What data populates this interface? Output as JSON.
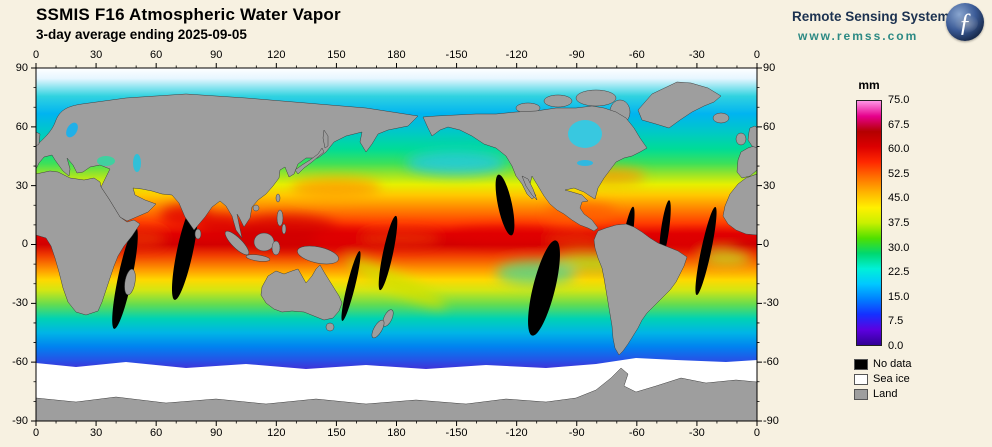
{
  "colors": {
    "page-bg": "#f7f1e1",
    "brand-name": "#1c3250",
    "brand-url": "#2d8a84",
    "land": "#9e9e9e"
  },
  "header": {
    "title": "SSMIS F16 Atmospheric Water Vapor",
    "subtitle": "3-day average ending 2025-09-05"
  },
  "branding": {
    "name": "Remote Sensing Systems",
    "url": "www.remss.com",
    "logo_glyph": "ƒ"
  },
  "axes": {
    "lon": [
      "0",
      "30",
      "60",
      "90",
      "120",
      "150",
      "180",
      "-150",
      "-120",
      "-90",
      "-60",
      "-30",
      "0"
    ],
    "lat": [
      "90",
      "60",
      "30",
      "0",
      "-30",
      "-60",
      "-90"
    ]
  },
  "colorbar": {
    "unit": "mm",
    "ticks": [
      "75.0",
      "67.5",
      "60.0",
      "52.5",
      "45.0",
      "37.5",
      "30.0",
      "22.5",
      "15.0",
      "7.5",
      "0.0"
    ],
    "gradient_bottom_to_top": [
      "#320096",
      "#5c00e0",
      "#1530ff",
      "#0080ff",
      "#00c8ff",
      "#00f0d8",
      "#00d870",
      "#50e000",
      "#c8f000",
      "#fff000",
      "#ffb400",
      "#ff7000",
      "#ff2800",
      "#dc0000",
      "#b40000",
      "#e6008c",
      "#ff96e6"
    ]
  },
  "legend": {
    "items": [
      {
        "label": "No data",
        "color": "#000000"
      },
      {
        "label": "Sea ice",
        "color": "#ffffff"
      },
      {
        "label": "Land",
        "color": "#9e9e9e"
      }
    ]
  }
}
